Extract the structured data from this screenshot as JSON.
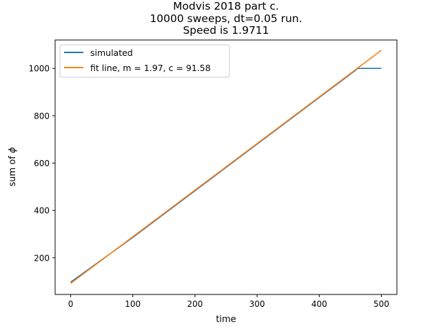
{
  "chart_data": {
    "type": "line",
    "title_lines": [
      "Modvis 2018 part c.",
      "10000 sweeps, dt=0.05 run.",
      "Speed is 1.9711"
    ],
    "xlabel": "time",
    "ylabel_prefix": "sum of ",
    "ylabel_symbol": "ϕ",
    "xlim": [
      -25,
      525
    ],
    "ylim": [
      45,
      1120
    ],
    "xticks": [
      0,
      100,
      200,
      300,
      400,
      500
    ],
    "yticks": [
      200,
      400,
      600,
      800,
      1000
    ],
    "legend_position": "upper-left",
    "series": [
      {
        "name": "simulated",
        "color": "#1f77b4",
        "x": [
          0,
          100,
          200,
          300,
          400,
          460,
          461,
          480,
          500
        ],
        "y": [
          97,
          286,
          483,
          680,
          877,
          995,
          1000,
          1000,
          1000
        ]
      },
      {
        "name": "fit line, m = 1.97, c = 91.58",
        "color": "#ff7f0e",
        "slope": 1.97,
        "intercept": 91.58,
        "x": [
          0,
          500
        ],
        "y": [
          91.58,
          1076.58
        ]
      }
    ]
  }
}
